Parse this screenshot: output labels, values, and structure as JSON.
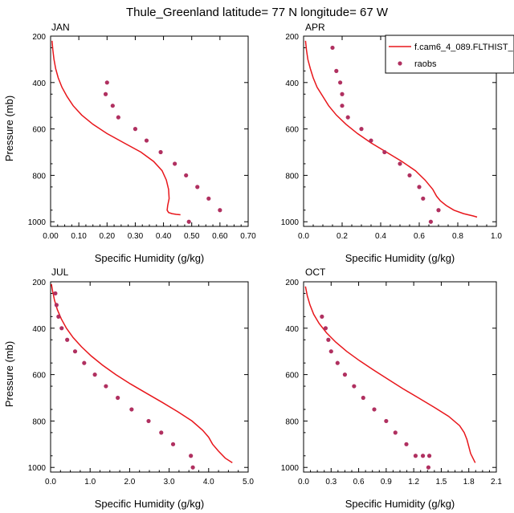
{
  "title": "Thule_Greenland  latitude= 77 N longitude= 67 W",
  "colors": {
    "model": "#e8161b",
    "obs": "#b03060",
    "axis": "#000000"
  },
  "legend": {
    "placement": "top-right of APR panel",
    "model_label": "f.cam6_4_089.FLTHIST_",
    "obs_label": "raobs"
  },
  "chart_data": [
    {
      "type": "line",
      "panel": "JAN",
      "title": "JAN",
      "xlabel": "Specific Humidity (g/kg)",
      "ylabel": "Pressure (mb)",
      "xlim": [
        0,
        0.7
      ],
      "ylim": [
        200,
        1020
      ],
      "y_reversed": true,
      "xticks": [
        "0.00",
        "0.10",
        "0.20",
        "0.30",
        "0.40",
        "0.50",
        "0.60",
        "0.70"
      ],
      "yticks": [
        "200",
        "400",
        "600",
        "800",
        "1000"
      ],
      "series": [
        {
          "kind": "line",
          "x": [
            0.005,
            0.008,
            0.012,
            0.018,
            0.027,
            0.04,
            0.058,
            0.08,
            0.11,
            0.15,
            0.2,
            0.26,
            0.32,
            0.365,
            0.395,
            0.41,
            0.418,
            0.42,
            0.415,
            0.413,
            0.418,
            0.43,
            0.445,
            0.46
          ],
          "y": [
            220,
            260,
            300,
            340,
            380,
            420,
            460,
            500,
            540,
            580,
            620,
            660,
            700,
            740,
            780,
            820,
            860,
            900,
            930,
            950,
            960,
            965,
            968,
            970
          ]
        },
        {
          "kind": "scatter",
          "x": [
            0.2,
            0.195,
            0.22,
            0.24,
            0.3,
            0.34,
            0.39,
            0.44,
            0.48,
            0.52,
            0.56,
            0.6,
            0.49
          ],
          "y": [
            400,
            450,
            500,
            550,
            600,
            650,
            700,
            750,
            800,
            850,
            900,
            950,
            1000
          ]
        }
      ]
    },
    {
      "type": "line",
      "panel": "APR",
      "title": "APR",
      "xlabel": "Specific Humidity (g/kg)",
      "ylabel": "",
      "xlim": [
        0,
        1.0
      ],
      "ylim": [
        200,
        1020
      ],
      "y_reversed": true,
      "xticks": [
        "0.0",
        "0.2",
        "0.4",
        "0.6",
        "0.8",
        "1.0"
      ],
      "yticks": [
        "200",
        "400",
        "600",
        "800",
        "1000"
      ],
      "series": [
        {
          "kind": "line",
          "x": [
            0.01,
            0.015,
            0.022,
            0.035,
            0.05,
            0.07,
            0.1,
            0.13,
            0.17,
            0.22,
            0.28,
            0.35,
            0.43,
            0.51,
            0.58,
            0.63,
            0.67,
            0.69,
            0.71,
            0.74,
            0.78,
            0.83,
            0.88,
            0.9
          ],
          "y": [
            220,
            260,
            300,
            340,
            380,
            420,
            460,
            500,
            540,
            580,
            620,
            660,
            700,
            740,
            780,
            820,
            860,
            890,
            910,
            930,
            950,
            965,
            975,
            980
          ]
        },
        {
          "kind": "scatter",
          "x": [
            0.15,
            0.17,
            0.19,
            0.2,
            0.2,
            0.23,
            0.3,
            0.35,
            0.42,
            0.5,
            0.55,
            0.6,
            0.62,
            0.7,
            0.66
          ],
          "y": [
            250,
            350,
            400,
            450,
            500,
            550,
            600,
            650,
            700,
            750,
            800,
            850,
            900,
            950,
            1000
          ]
        }
      ]
    },
    {
      "type": "line",
      "panel": "JUL",
      "title": "JUL",
      "xlabel": "Specific Humidity (g/kg)",
      "ylabel": "Pressure (mb)",
      "xlim": [
        0,
        5.0
      ],
      "ylim": [
        200,
        1020
      ],
      "y_reversed": true,
      "xticks": [
        "0.0",
        "1.0",
        "2.0",
        "3.0",
        "4.0",
        "5.0"
      ],
      "yticks": [
        "200",
        "400",
        "600",
        "800",
        "1000"
      ],
      "series": [
        {
          "kind": "line",
          "x": [
            0.02,
            0.05,
            0.1,
            0.17,
            0.27,
            0.4,
            0.57,
            0.78,
            1.03,
            1.32,
            1.65,
            2.02,
            2.42,
            2.83,
            3.22,
            3.58,
            3.85,
            4.0,
            4.1,
            4.25,
            4.42,
            4.6
          ],
          "y": [
            210,
            240,
            280,
            320,
            360,
            400,
            440,
            480,
            520,
            560,
            600,
            640,
            680,
            720,
            760,
            800,
            840,
            870,
            900,
            930,
            960,
            980
          ]
        },
        {
          "kind": "scatter",
          "x": [
            0.12,
            0.15,
            0.2,
            0.28,
            0.42,
            0.62,
            0.85,
            1.12,
            1.4,
            1.7,
            2.05,
            2.48,
            2.8,
            3.1,
            3.55,
            3.6
          ],
          "y": [
            250,
            300,
            350,
            400,
            450,
            500,
            550,
            600,
            650,
            700,
            750,
            800,
            850,
            900,
            950,
            1000
          ]
        }
      ]
    },
    {
      "type": "line",
      "panel": "OCT",
      "title": "OCT",
      "xlabel": "Specific Humidity (g/kg)",
      "ylabel": "",
      "xlim": [
        0,
        2.1
      ],
      "ylim": [
        200,
        1020
      ],
      "y_reversed": true,
      "xticks": [
        "0.0",
        "0.3",
        "0.6",
        "0.9",
        "1.2",
        "1.5",
        "1.8",
        "2.1"
      ],
      "yticks": [
        "200",
        "400",
        "600",
        "800",
        "1000"
      ],
      "series": [
        {
          "kind": "line",
          "x": [
            0.02,
            0.04,
            0.07,
            0.11,
            0.17,
            0.25,
            0.35,
            0.47,
            0.61,
            0.76,
            0.92,
            1.08,
            1.25,
            1.42,
            1.58,
            1.7,
            1.75,
            1.78,
            1.82,
            1.87
          ],
          "y": [
            220,
            260,
            300,
            340,
            380,
            420,
            460,
            500,
            540,
            580,
            620,
            660,
            700,
            740,
            780,
            820,
            850,
            880,
            940,
            980
          ]
        },
        {
          "kind": "scatter",
          "x": [
            0.2,
            0.24,
            0.27,
            0.3,
            0.37,
            0.45,
            0.55,
            0.65,
            0.77,
            0.9,
            1.0,
            1.12,
            1.22,
            1.3,
            1.37,
            1.36
          ],
          "y": [
            350,
            400,
            450,
            500,
            550,
            600,
            650,
            700,
            750,
            800,
            850,
            900,
            950,
            950,
            950,
            1000
          ]
        }
      ]
    }
  ]
}
